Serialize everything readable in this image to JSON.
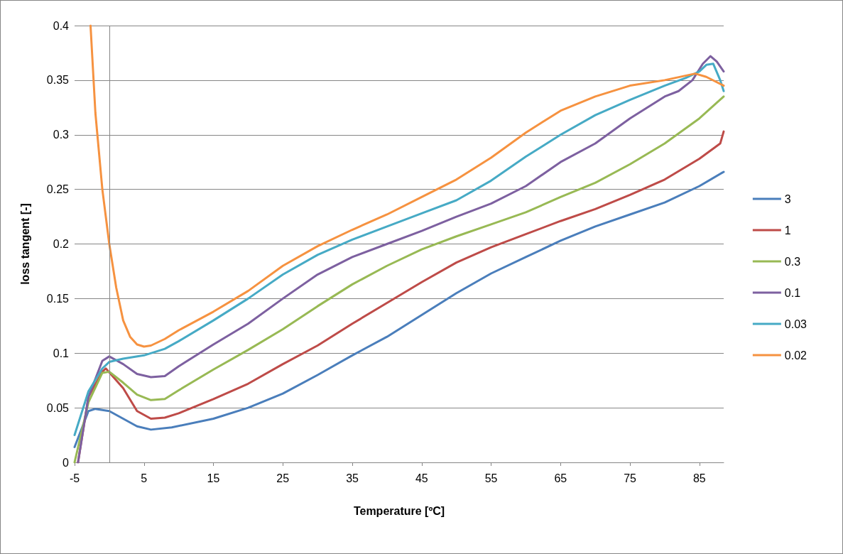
{
  "chart_data": {
    "type": "line",
    "xlabel": "Temperature [ºC]",
    "ylabel": "loss tangent [-]",
    "xlim": [
      -5,
      88.5
    ],
    "xticks": [
      -5,
      5,
      15,
      25,
      35,
      45,
      55,
      65,
      75,
      85
    ],
    "ylim": [
      0,
      0.4
    ],
    "yticks": [
      0,
      0.05,
      0.1,
      0.15,
      0.2,
      0.25,
      0.3,
      0.35,
      0.4
    ],
    "grid": "y",
    "legend": "right",
    "marker": "none",
    "line_style": "solid",
    "ref_lines": [
      {
        "axis": "x",
        "value": 0,
        "color": "#868686"
      }
    ],
    "series": [
      {
        "name": "3",
        "color": "#4a7ebb",
        "x": [
          -5,
          -3,
          -2,
          0,
          2,
          4,
          6,
          9,
          15,
          20,
          25,
          30,
          35,
          40,
          45,
          50,
          55,
          60,
          65,
          70,
          75,
          80,
          85,
          88.5
        ],
        "values": [
          0.014,
          0.047,
          0.049,
          0.047,
          0.04,
          0.033,
          0.03,
          0.032,
          0.04,
          0.05,
          0.063,
          0.08,
          0.098,
          0.115,
          0.135,
          0.155,
          0.173,
          0.188,
          0.203,
          0.216,
          0.227,
          0.238,
          0.253,
          0.266
        ]
      },
      {
        "name": "1",
        "color": "#be4b48",
        "x": [
          -4.5,
          -3,
          -1,
          -0.5,
          2,
          4,
          6,
          8,
          10,
          15,
          20,
          25,
          30,
          35,
          40,
          45,
          50,
          55,
          60,
          65,
          70,
          75,
          80,
          85,
          88,
          88.5
        ],
        "values": [
          0,
          0.06,
          0.083,
          0.086,
          0.068,
          0.047,
          0.04,
          0.041,
          0.045,
          0.058,
          0.072,
          0.09,
          0.107,
          0.127,
          0.146,
          0.165,
          0.183,
          0.197,
          0.209,
          0.221,
          0.232,
          0.245,
          0.259,
          0.278,
          0.292,
          0.303
        ]
      },
      {
        "name": "0.3",
        "color": "#98b954",
        "x": [
          -5,
          -3,
          -1,
          0,
          2,
          4,
          6,
          8,
          10,
          15,
          20,
          25,
          30,
          35,
          40,
          45,
          50,
          55,
          60,
          65,
          70,
          75,
          80,
          85,
          88.5
        ],
        "values": [
          0,
          0.055,
          0.082,
          0.083,
          0.073,
          0.062,
          0.057,
          0.058,
          0.066,
          0.085,
          0.103,
          0.122,
          0.143,
          0.163,
          0.18,
          0.195,
          0.207,
          0.218,
          0.229,
          0.243,
          0.256,
          0.273,
          0.292,
          0.315,
          0.335
        ]
      },
      {
        "name": "0.1",
        "color": "#7d60a0",
        "x": [
          -4.5,
          -3,
          -1,
          0,
          2,
          4,
          6,
          8,
          10,
          15,
          20,
          25,
          30,
          35,
          40,
          45,
          50,
          55,
          60,
          65,
          70,
          75,
          80,
          82,
          84,
          85.5,
          86.6,
          87.5,
          88.5
        ],
        "values": [
          0,
          0.06,
          0.093,
          0.097,
          0.09,
          0.081,
          0.078,
          0.079,
          0.088,
          0.108,
          0.127,
          0.15,
          0.172,
          0.188,
          0.2,
          0.212,
          0.225,
          0.237,
          0.253,
          0.275,
          0.292,
          0.315,
          0.335,
          0.34,
          0.35,
          0.365,
          0.372,
          0.367,
          0.358
        ]
      },
      {
        "name": "0.03",
        "color": "#46aac5",
        "x": [
          -5,
          -3,
          -1,
          0,
          2,
          5,
          8,
          10,
          15,
          20,
          25,
          30,
          35,
          40,
          45,
          50,
          55,
          60,
          65,
          70,
          75,
          80,
          83,
          85,
          86,
          87,
          88,
          88.5
        ],
        "values": [
          0.025,
          0.065,
          0.086,
          0.092,
          0.095,
          0.098,
          0.104,
          0.111,
          0.13,
          0.15,
          0.172,
          0.19,
          0.204,
          0.216,
          0.228,
          0.24,
          0.258,
          0.28,
          0.3,
          0.318,
          0.332,
          0.345,
          0.352,
          0.358,
          0.364,
          0.365,
          0.35,
          0.34
        ]
      },
      {
        "name": "0.02",
        "color": "#f69240",
        "x": [
          -2.7,
          -2,
          -1,
          0,
          1,
          2,
          3,
          4,
          5,
          6,
          8,
          10,
          15,
          20,
          25,
          30,
          35,
          40,
          45,
          50,
          55,
          60,
          65,
          70,
          75,
          80,
          84.4,
          86,
          88.5
        ],
        "values": [
          0.4,
          0.32,
          0.25,
          0.2,
          0.16,
          0.13,
          0.115,
          0.108,
          0.106,
          0.107,
          0.113,
          0.121,
          0.138,
          0.157,
          0.18,
          0.198,
          0.213,
          0.227,
          0.243,
          0.259,
          0.279,
          0.302,
          0.322,
          0.335,
          0.345,
          0.35,
          0.356,
          0.353,
          0.345
        ]
      }
    ]
  }
}
